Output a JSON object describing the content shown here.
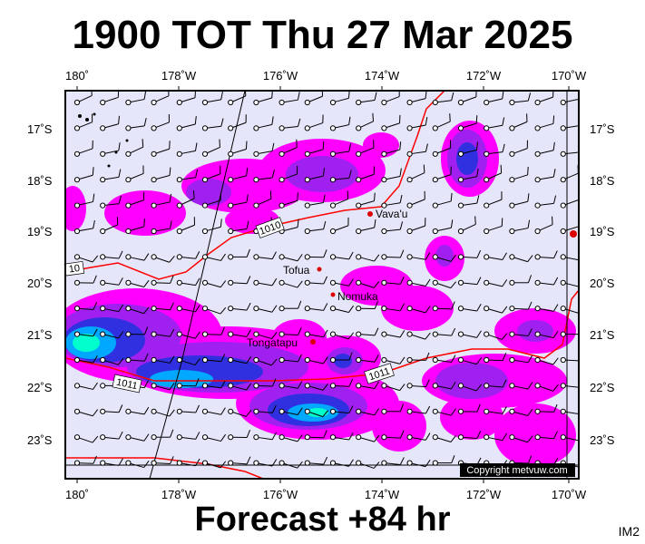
{
  "title": "1900 TOT Thu 27 Mar 2025",
  "footer": "Forecast +84 hr",
  "tag": "IM2",
  "copyright": "Copyright metvuw.com",
  "lon_labels": [
    "180˚",
    "178˚W",
    "176˚W",
    "174˚W",
    "172˚W",
    "170˚W"
  ],
  "lat_labels": [
    "17˚S",
    "18˚S",
    "19˚S",
    "20˚S",
    "21˚S",
    "22˚S",
    "23˚S"
  ],
  "places": {
    "vavau": "Vava'u",
    "tofua": "Tofua",
    "nomuka": "Nomuka",
    "tongatapu": "Tongatapu"
  },
  "isobars": {
    "label_1010a": "1010",
    "label_1010b": "10",
    "label_1011a": "1011",
    "label_1011b": "1011"
  },
  "colors": {
    "background": "#e6e6fa",
    "rain_light": "#ff00ff",
    "rain_mid": "#a020f0",
    "rain_heavy": "#3030e0",
    "rain_vheavy": "#00a8ff",
    "rain_extreme": "#00ffcc",
    "isobar": "#ff0000"
  }
}
